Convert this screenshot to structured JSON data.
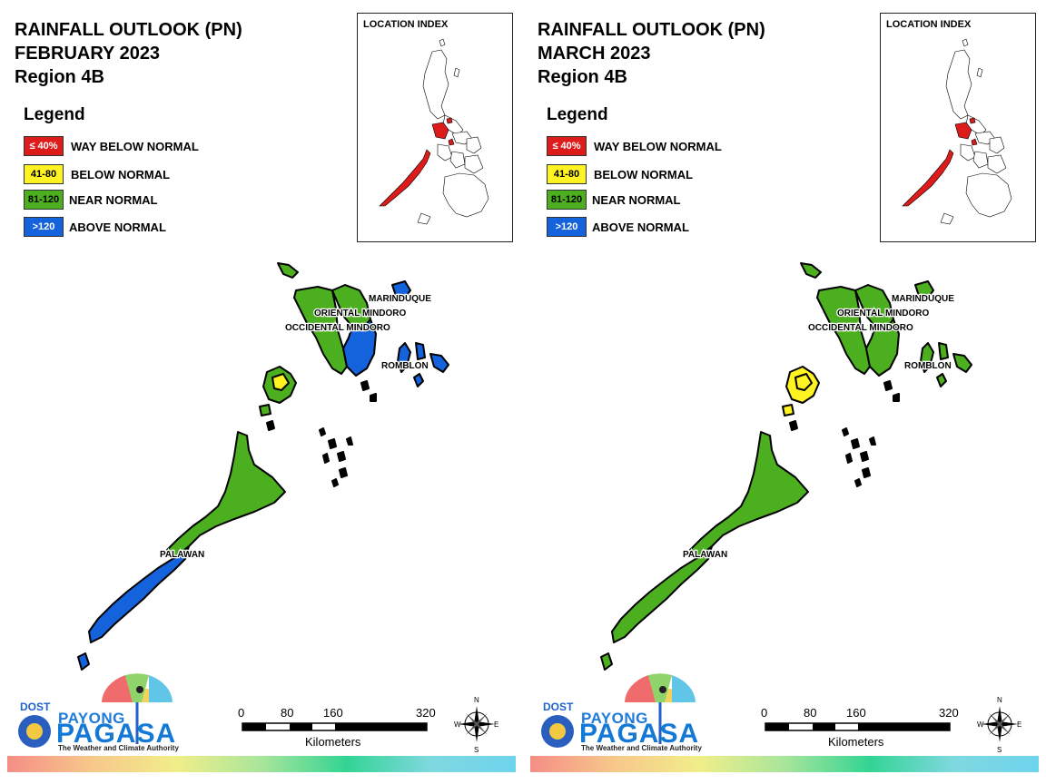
{
  "panels": [
    {
      "title_line1": "RAINFALL OUTLOOK (PN)",
      "title_line2": "FEBRUARY 2023",
      "title_line3": "Region 4B",
      "legend_title": "Legend",
      "legend": [
        {
          "code": "≤ 40%",
          "label": "WAY BELOW NORMAL",
          "color": "#dd1b1b",
          "text_color": "#ffffff"
        },
        {
          "code": "41-80",
          "label": "BELOW NORMAL",
          "color": "#fff321",
          "text_color": "#000000"
        },
        {
          "code": "81-120",
          "label": "NEAR NORMAL",
          "color": "#4caf20",
          "text_color": "#000000"
        },
        {
          "code": ">120",
          "label": "ABOVE NORMAL",
          "color": "#1462dc",
          "text_color": "#ffffff"
        }
      ],
      "index_title": "LOCATION INDEX",
      "provinces": {
        "marinduque": "MARINDUQUE",
        "oriental_mindoro": "ORIENTAL MINDORO",
        "occidental_mindoro": "OCCIDENTAL MINDORO",
        "romblon": "ROMBLON",
        "palawan": "PALAWAN"
      },
      "fills": {
        "occidental_mindoro": "#4caf20",
        "oriental_mindoro_north": "#4caf20",
        "oriental_mindoro_east": "#1462dc",
        "marinduque": "#1462dc",
        "romblon": "#1462dc",
        "calamian": "#4caf20",
        "calamian_spot": "#fff321",
        "palawan_north": "#4caf20",
        "palawan_south": "#1462dc"
      },
      "logo": {
        "dost": "DOST",
        "payong": "PAYONG",
        "pagasa": "PAGASA",
        "tagline": "The Weather and Climate Authority"
      },
      "scale": {
        "ticks": [
          "0",
          "80",
          "160",
          "320"
        ],
        "unit": "Kilometers"
      },
      "compass": {
        "n": "N",
        "s": "S",
        "e": "E",
        "w": "W"
      }
    },
    {
      "title_line1": "RAINFALL OUTLOOK (PN)",
      "title_line2": "MARCH 2023",
      "title_line3": "Region 4B",
      "legend_title": "Legend",
      "legend": [
        {
          "code": "≤ 40%",
          "label": "WAY BELOW NORMAL",
          "color": "#dd1b1b",
          "text_color": "#ffffff"
        },
        {
          "code": "41-80",
          "label": "BELOW NORMAL",
          "color": "#fff321",
          "text_color": "#000000"
        },
        {
          "code": "81-120",
          "label": "NEAR NORMAL",
          "color": "#4caf20",
          "text_color": "#000000"
        },
        {
          "code": ">120",
          "label": "ABOVE NORMAL",
          "color": "#1462dc",
          "text_color": "#ffffff"
        }
      ],
      "index_title": "LOCATION INDEX",
      "provinces": {
        "marinduque": "MARINDUQUE",
        "oriental_mindoro": "ORIENTAL MINDORO",
        "occidental_mindoro": "OCCIDENTAL MINDORO",
        "romblon": "ROMBLON",
        "palawan": "PALAWAN"
      },
      "fills": {
        "occidental_mindoro": "#4caf20",
        "oriental_mindoro_north": "#4caf20",
        "oriental_mindoro_east": "#4caf20",
        "marinduque": "#4caf20",
        "romblon": "#4caf20",
        "calamian": "#fff321",
        "calamian_spot": "#fff321",
        "palawan_north": "#4caf20",
        "palawan_south": "#4caf20"
      },
      "logo": {
        "dost": "DOST",
        "payong": "PAYONG",
        "pagasa": "PAGASA",
        "tagline": "The Weather and Climate Authority"
      },
      "scale": {
        "ticks": [
          "0",
          "80",
          "160",
          "320"
        ],
        "unit": "Kilometers"
      },
      "compass": {
        "n": "N",
        "s": "S",
        "e": "E",
        "w": "W"
      }
    }
  ],
  "colors": {
    "index_highlight": "#dd1b1b",
    "outline": "#000000"
  }
}
